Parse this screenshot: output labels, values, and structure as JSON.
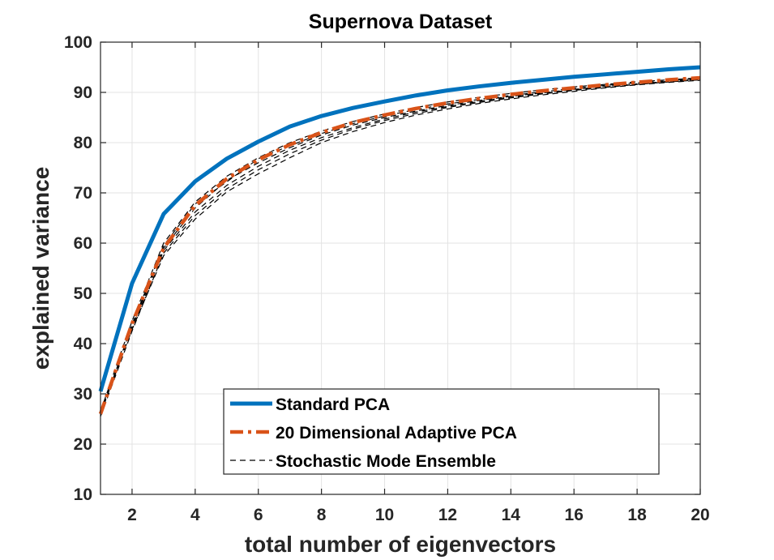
{
  "chart_data": {
    "type": "line",
    "title": "Supernova Dataset",
    "xlabel": "total number of eigenvectors",
    "ylabel": "explained variance",
    "xlim": [
      1,
      20
    ],
    "ylim": [
      10,
      100
    ],
    "xticks": [
      2,
      4,
      6,
      8,
      10,
      12,
      14,
      16,
      18,
      20
    ],
    "yticks": [
      10,
      20,
      30,
      40,
      50,
      60,
      70,
      80,
      90,
      100
    ],
    "grid": true,
    "legend_position": "bottom-center",
    "x": [
      1,
      2,
      3,
      4,
      5,
      6,
      7,
      8,
      9,
      10,
      11,
      12,
      13,
      14,
      15,
      16,
      17,
      18,
      19,
      20
    ],
    "series": [
      {
        "name": "Standard PCA",
        "color": "#0072BD",
        "style": "solid",
        "values": [
          30.5,
          52,
          65.8,
          72.3,
          76.8,
          80.2,
          83.2,
          85.3,
          86.9,
          88.2,
          89.4,
          90.4,
          91.2,
          91.9,
          92.5,
          93.1,
          93.6,
          94.1,
          94.6,
          95.0
        ]
      },
      {
        "name": "20 Dimensional Adaptive PCA",
        "color": "#D95319",
        "style": "dashdot",
        "values": [
          26,
          44,
          59,
          67.5,
          72.8,
          76.6,
          79.6,
          82,
          84,
          85.5,
          86.8,
          87.9,
          88.8,
          89.6,
          90.3,
          90.9,
          91.5,
          92,
          92.5,
          92.9
        ]
      },
      {
        "name": "Stochastic  Mode Ensemble",
        "color": "#000000",
        "style": "dashed",
        "values": [
          26,
          43.5,
          59,
          67,
          72.5,
          76,
          79,
          81.5,
          83.5,
          85,
          86.3,
          87.4,
          88.4,
          89.2,
          89.9,
          90.6,
          91.2,
          91.7,
          92.2,
          92.6
        ]
      }
    ],
    "ensemble_extra": [
      [
        26.5,
        44.5,
        60,
        68.2,
        73.3,
        77,
        80,
        82.3,
        84.2,
        85.7,
        87,
        88.1,
        89,
        89.8,
        90.5,
        91.1,
        91.6,
        92.1,
        92.5,
        92.9
      ],
      [
        25.5,
        42.5,
        58,
        65.5,
        70.8,
        74.6,
        77.8,
        80.5,
        82.7,
        84.4,
        85.8,
        87,
        88,
        88.9,
        89.7,
        90.4,
        91,
        91.6,
        92.1,
        92.5
      ],
      [
        26,
        43,
        58.5,
        66.2,
        71.5,
        75.3,
        78.5,
        81,
        83,
        84.7,
        86.1,
        87.2,
        88.2,
        89.1,
        89.8,
        90.5,
        91.1,
        91.6,
        92.1,
        92.5
      ],
      [
        25.8,
        43.8,
        59.5,
        67.8,
        72.2,
        76.8,
        79.4,
        81.8,
        83.8,
        85.3,
        86.6,
        87.7,
        88.6,
        89.4,
        90.1,
        90.8,
        91.4,
        91.9,
        92.3,
        92.8
      ],
      [
        26.2,
        42.8,
        57.5,
        64.8,
        70.2,
        73.8,
        77,
        80,
        82.2,
        84,
        85.5,
        86.7,
        87.8,
        88.7,
        89.5,
        90.2,
        90.9,
        91.5,
        92,
        92.4
      ]
    ]
  }
}
